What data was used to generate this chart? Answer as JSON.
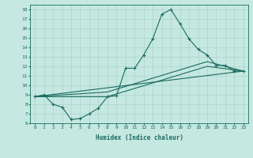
{
  "xlabel": "Humidex (Indice chaleur)",
  "background_color": "#c5e8e0",
  "line_color": "#1a6b60",
  "xlim": [
    -0.5,
    23.5
  ],
  "ylim": [
    6,
    18.5
  ],
  "xticks": [
    0,
    1,
    2,
    3,
    4,
    5,
    6,
    7,
    8,
    9,
    10,
    11,
    12,
    13,
    14,
    15,
    16,
    17,
    18,
    19,
    20,
    21,
    22,
    23
  ],
  "yticks": [
    6,
    7,
    8,
    9,
    10,
    11,
    12,
    13,
    14,
    15,
    16,
    17,
    18
  ],
  "line1_x": [
    0,
    1,
    2,
    3,
    4,
    5,
    6,
    7,
    8,
    9,
    10,
    11,
    12,
    13,
    14,
    15,
    16,
    17,
    18,
    19,
    20,
    21,
    22,
    23
  ],
  "line1_y": [
    8.8,
    9.0,
    8.0,
    7.7,
    6.4,
    6.5,
    7.0,
    7.6,
    8.8,
    8.9,
    11.8,
    11.8,
    13.2,
    14.9,
    17.5,
    18.0,
    16.5,
    14.9,
    13.8,
    13.2,
    12.1,
    12.1,
    11.5,
    11.5
  ],
  "line2_x": [
    0,
    23
  ],
  "line2_y": [
    8.8,
    11.5
  ],
  "line3_x": [
    0,
    8,
    19,
    23
  ],
  "line3_y": [
    8.8,
    9.3,
    12.5,
    11.5
  ],
  "line4_x": [
    0,
    8,
    19,
    23
  ],
  "line4_y": [
    8.8,
    8.8,
    12.0,
    11.5
  ]
}
